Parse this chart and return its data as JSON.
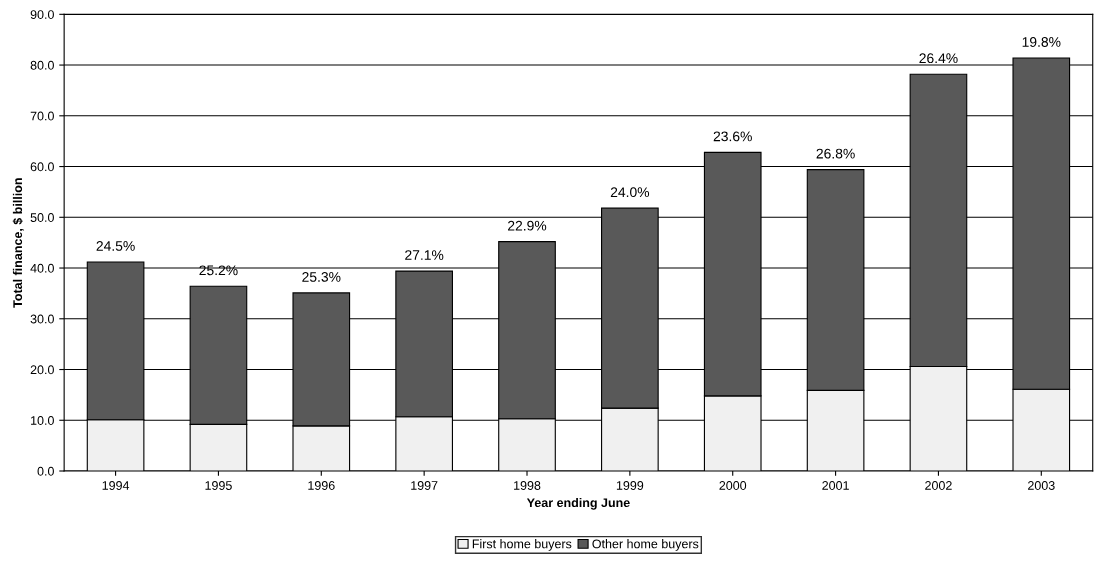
{
  "chart_data": {
    "type": "bar",
    "stacked": true,
    "xlabel": "Year ending June",
    "ylabel": "Total finance, $ billion",
    "categories": [
      "1994",
      "1995",
      "1996",
      "1997",
      "1998",
      "1999",
      "2000",
      "2001",
      "2002",
      "2003"
    ],
    "series": [
      {
        "name": "First home buyers",
        "color": "#f0f0f0",
        "values": [
          10.1,
          9.2,
          8.9,
          10.7,
          10.3,
          12.4,
          14.8,
          15.9,
          20.6,
          16.1
        ]
      },
      {
        "name": "Other home buyers",
        "color": "#595959",
        "values": [
          31.1,
          27.2,
          26.2,
          28.7,
          34.9,
          39.4,
          48.0,
          43.5,
          57.6,
          65.3
        ]
      }
    ],
    "ylim": [
      0,
      90
    ],
    "yticks": [
      {
        "value": 0,
        "label": "0.0"
      },
      {
        "value": 10,
        "label": "10.0"
      },
      {
        "value": 20,
        "label": "20.0"
      },
      {
        "value": 30,
        "label": "30.0"
      },
      {
        "value": 40,
        "label": "40.0"
      },
      {
        "value": 50,
        "label": "50.0"
      },
      {
        "value": 60,
        "label": "60.0"
      },
      {
        "value": 70,
        "label": "70.0"
      },
      {
        "value": 80,
        "label": "80.0"
      },
      {
        "value": 90,
        "label": "90.0"
      }
    ],
    "grid": "y",
    "legend": "bottom",
    "annotations": [
      {
        "text": "24.5%",
        "x": "1994",
        "y": 41.2
      },
      {
        "text": "25.2%",
        "x": "1995",
        "y": 36.4
      },
      {
        "text": "25.3%",
        "x": "1996",
        "y": 35.1
      },
      {
        "text": "27.1%",
        "x": "1997",
        "y": 39.4
      },
      {
        "text": "22.9%",
        "x": "1998",
        "y": 45.2
      },
      {
        "text": "24.0%",
        "x": "1999",
        "y": 51.8
      },
      {
        "text": "23.6%",
        "x": "2000",
        "y": 62.8
      },
      {
        "text": "26.8%",
        "x": "2001",
        "y": 59.4
      },
      {
        "text": "26.4%",
        "x": "2002",
        "y": 78.2
      },
      {
        "text": "19.8%",
        "x": "2003",
        "y": 81.4
      }
    ]
  }
}
